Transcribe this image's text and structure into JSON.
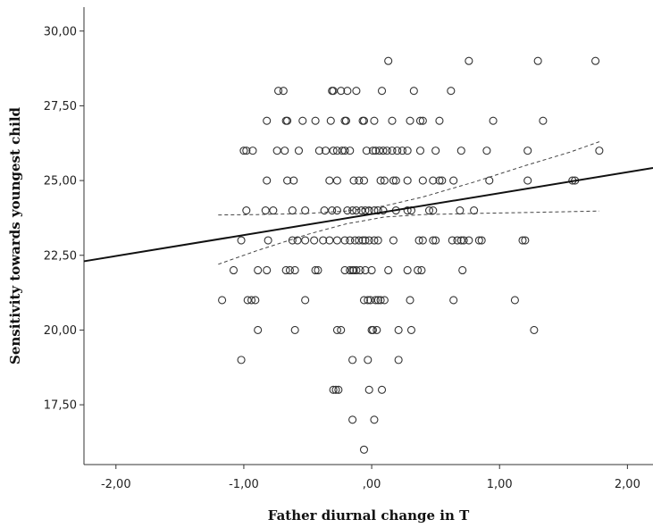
{
  "chart_data": {
    "type": "scatter",
    "title": "",
    "xlabel": "Father diurnal change in T",
    "ylabel": "Sensitivity towards youngest child",
    "xlim": [
      -2.25,
      2.2
    ],
    "ylim": [
      15.5,
      30.8
    ],
    "x_ticks": [
      -2,
      -1,
      0,
      1,
      2
    ],
    "x_tick_labels": [
      "-2,00",
      "-1,00",
      ",00",
      "1,00",
      "2,00"
    ],
    "y_ticks": [
      17.5,
      20,
      22.5,
      25,
      27.5,
      30
    ],
    "y_tick_labels": [
      "17,50",
      "20,00",
      "22,50",
      "25,00",
      "27,50",
      "30,00"
    ],
    "grid": false,
    "legend": "none",
    "points": [
      [
        -0.06,
        16
      ],
      [
        0.02,
        17
      ],
      [
        -0.15,
        17
      ],
      [
        -0.3,
        18
      ],
      [
        -0.28,
        18
      ],
      [
        -0.26,
        18
      ],
      [
        -0.02,
        18
      ],
      [
        0.08,
        18
      ],
      [
        0.21,
        19
      ],
      [
        -0.15,
        19
      ],
      [
        -1.02,
        19
      ],
      [
        -0.03,
        19
      ],
      [
        -0.89,
        20
      ],
      [
        -0.6,
        20
      ],
      [
        -0.27,
        20
      ],
      [
        -0.24,
        20
      ],
      [
        0.0,
        20
      ],
      [
        0.01,
        20
      ],
      [
        0.04,
        20
      ],
      [
        0.21,
        20
      ],
      [
        0.31,
        20
      ],
      [
        1.27,
        20
      ],
      [
        -1.17,
        21
      ],
      [
        -0.97,
        21
      ],
      [
        -0.94,
        21
      ],
      [
        -0.91,
        21
      ],
      [
        -0.52,
        21
      ],
      [
        -0.06,
        21
      ],
      [
        -0.03,
        21
      ],
      [
        -0.01,
        21
      ],
      [
        0.03,
        21
      ],
      [
        0.05,
        21
      ],
      [
        0.07,
        21
      ],
      [
        0.1,
        21
      ],
      [
        0.3,
        21
      ],
      [
        0.64,
        21
      ],
      [
        1.12,
        21
      ],
      [
        -1.08,
        22
      ],
      [
        -0.89,
        22
      ],
      [
        -0.82,
        22
      ],
      [
        -0.67,
        22
      ],
      [
        -0.64,
        22
      ],
      [
        -0.6,
        22
      ],
      [
        -0.44,
        22
      ],
      [
        -0.42,
        22
      ],
      [
        -0.21,
        22
      ],
      [
        -0.17,
        22
      ],
      [
        -0.15,
        22
      ],
      [
        -0.14,
        22
      ],
      [
        -0.12,
        22
      ],
      [
        -0.09,
        22
      ],
      [
        -0.05,
        22
      ],
      [
        0.0,
        22
      ],
      [
        0.13,
        22
      ],
      [
        0.28,
        22
      ],
      [
        0.36,
        22
      ],
      [
        0.39,
        22
      ],
      [
        0.71,
        22
      ],
      [
        -1.02,
        23
      ],
      [
        -0.81,
        23
      ],
      [
        -0.62,
        23
      ],
      [
        -0.58,
        23
      ],
      [
        -0.52,
        23
      ],
      [
        -0.45,
        23
      ],
      [
        -0.38,
        23
      ],
      [
        -0.33,
        23
      ],
      [
        -0.27,
        23
      ],
      [
        -0.21,
        23
      ],
      [
        -0.17,
        23
      ],
      [
        -0.13,
        23
      ],
      [
        -0.1,
        23
      ],
      [
        -0.07,
        23
      ],
      [
        -0.05,
        23
      ],
      [
        -0.02,
        23
      ],
      [
        0.02,
        23
      ],
      [
        0.05,
        23
      ],
      [
        0.17,
        23
      ],
      [
        0.37,
        23
      ],
      [
        0.4,
        23
      ],
      [
        0.48,
        23
      ],
      [
        0.5,
        23
      ],
      [
        0.63,
        23
      ],
      [
        0.67,
        23
      ],
      [
        0.7,
        23
      ],
      [
        0.72,
        23
      ],
      [
        0.76,
        23
      ],
      [
        0.84,
        23
      ],
      [
        0.86,
        23
      ],
      [
        1.18,
        23
      ],
      [
        1.2,
        23
      ],
      [
        -0.98,
        24
      ],
      [
        -0.83,
        24
      ],
      [
        -0.77,
        24
      ],
      [
        -0.62,
        24
      ],
      [
        -0.52,
        24
      ],
      [
        -0.37,
        24
      ],
      [
        -0.31,
        24
      ],
      [
        -0.27,
        24
      ],
      [
        -0.19,
        24
      ],
      [
        -0.15,
        24
      ],
      [
        -0.12,
        24
      ],
      [
        -0.08,
        24
      ],
      [
        -0.05,
        24
      ],
      [
        -0.02,
        24
      ],
      [
        0.02,
        24
      ],
      [
        0.05,
        24
      ],
      [
        0.09,
        24
      ],
      [
        0.19,
        24
      ],
      [
        0.28,
        24
      ],
      [
        0.31,
        24
      ],
      [
        0.45,
        24
      ],
      [
        0.48,
        24
      ],
      [
        0.69,
        24
      ],
      [
        0.8,
        24
      ],
      [
        -0.82,
        25
      ],
      [
        -0.66,
        25
      ],
      [
        -0.61,
        25
      ],
      [
        -0.33,
        25
      ],
      [
        -0.27,
        25
      ],
      [
        -0.14,
        25
      ],
      [
        -0.1,
        25
      ],
      [
        -0.06,
        25
      ],
      [
        0.07,
        25
      ],
      [
        0.1,
        25
      ],
      [
        0.17,
        25
      ],
      [
        0.19,
        25
      ],
      [
        0.28,
        25
      ],
      [
        0.4,
        25
      ],
      [
        0.48,
        25
      ],
      [
        0.53,
        25
      ],
      [
        0.55,
        25
      ],
      [
        0.64,
        25
      ],
      [
        0.92,
        25
      ],
      [
        1.22,
        25
      ],
      [
        1.57,
        25
      ],
      [
        1.59,
        25
      ],
      [
        -1.0,
        26
      ],
      [
        -0.98,
        26
      ],
      [
        -0.93,
        26
      ],
      [
        -0.74,
        26
      ],
      [
        -0.68,
        26
      ],
      [
        -0.57,
        26
      ],
      [
        -0.41,
        26
      ],
      [
        -0.36,
        26
      ],
      [
        -0.3,
        26
      ],
      [
        -0.27,
        26
      ],
      [
        -0.23,
        26
      ],
      [
        -0.21,
        26
      ],
      [
        -0.17,
        26
      ],
      [
        -0.04,
        26
      ],
      [
        0.01,
        26
      ],
      [
        0.03,
        26
      ],
      [
        0.06,
        26
      ],
      [
        0.09,
        26
      ],
      [
        0.12,
        26
      ],
      [
        0.16,
        26
      ],
      [
        0.2,
        26
      ],
      [
        0.24,
        26
      ],
      [
        0.28,
        26
      ],
      [
        0.38,
        26
      ],
      [
        0.5,
        26
      ],
      [
        0.7,
        26
      ],
      [
        0.9,
        26
      ],
      [
        1.22,
        26
      ],
      [
        1.78,
        26
      ],
      [
        -0.82,
        27
      ],
      [
        -0.67,
        27
      ],
      [
        -0.66,
        27
      ],
      [
        -0.54,
        27
      ],
      [
        -0.44,
        27
      ],
      [
        -0.32,
        27
      ],
      [
        -0.21,
        27
      ],
      [
        -0.2,
        27
      ],
      [
        -0.07,
        27
      ],
      [
        -0.06,
        27
      ],
      [
        0.02,
        27
      ],
      [
        0.16,
        27
      ],
      [
        0.3,
        27
      ],
      [
        0.38,
        27
      ],
      [
        0.4,
        27
      ],
      [
        0.53,
        27
      ],
      [
        0.95,
        27
      ],
      [
        1.34,
        27
      ],
      [
        -0.73,
        28
      ],
      [
        -0.69,
        28
      ],
      [
        -0.31,
        28
      ],
      [
        -0.3,
        28
      ],
      [
        -0.24,
        28
      ],
      [
        -0.19,
        28
      ],
      [
        -0.12,
        28
      ],
      [
        0.08,
        28
      ],
      [
        0.33,
        28
      ],
      [
        0.62,
        28
      ],
      [
        0.13,
        29
      ],
      [
        0.76,
        29
      ],
      [
        1.3,
        29
      ],
      [
        1.75,
        29
      ]
    ],
    "fit_line": {
      "x": [
        -2.25,
        2.2
      ],
      "y": [
        22.3,
        25.42
      ]
    },
    "ci_upper": {
      "x": [
        -1.2,
        -0.9,
        -0.5,
        -0.2,
        0.1,
        0.4,
        0.8,
        1.2,
        1.55,
        1.78
      ],
      "y": [
        23.85,
        23.86,
        23.9,
        23.98,
        24.15,
        24.45,
        24.95,
        25.5,
        25.95,
        26.3
      ]
    },
    "ci_lower": {
      "x": [
        -1.2,
        -0.9,
        -0.5,
        -0.2,
        0.1,
        0.4,
        0.8,
        1.2,
        1.55,
        1.78
      ],
      "y": [
        22.2,
        22.65,
        23.2,
        23.55,
        23.78,
        23.86,
        23.9,
        23.93,
        23.96,
        23.98
      ]
    }
  }
}
